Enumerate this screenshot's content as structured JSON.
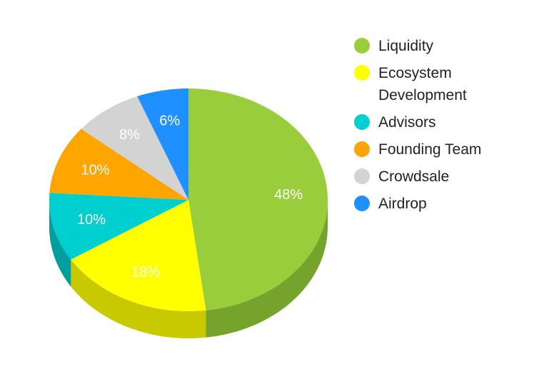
{
  "chart_data": {
    "type": "pie",
    "style": "3d",
    "categories": [
      "Liquidity",
      "Ecosystem Development",
      "Advisors",
      "Founding Team",
      "Crowdsale",
      "Airdrop"
    ],
    "values": [
      48,
      18,
      10,
      10,
      8,
      6
    ],
    "labels": [
      "48%",
      "18%",
      "10%",
      "10%",
      "8%",
      "6%"
    ],
    "colors": [
      "#9acd3c",
      "#ffff00",
      "#00cfcf",
      "#ffa500",
      "#d3d3d3",
      "#1e90ff"
    ],
    "side_colors": [
      "#76a32b",
      "#c9c900",
      "#009e9e",
      "#c98200",
      "#a8a8a8",
      "#1670c9"
    ],
    "legend_position": "right",
    "title": ""
  }
}
